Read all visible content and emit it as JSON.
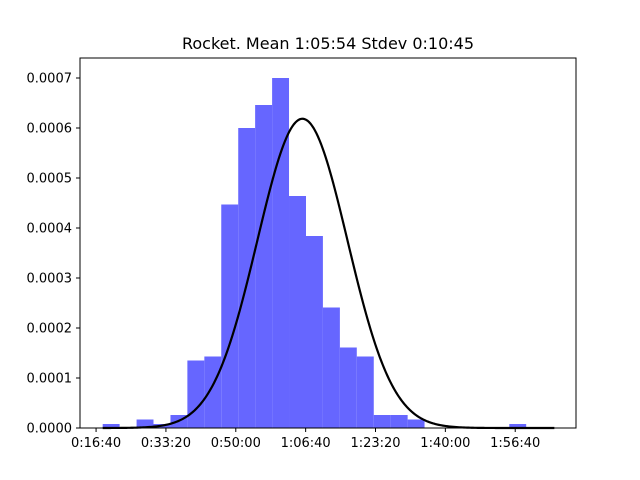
{
  "chart_data": {
    "type": "bar",
    "title": "Rocket. Mean 1:05:54 Stdev 0:10:45",
    "xlabel": "",
    "ylabel": "",
    "x_unit": "seconds",
    "xlim": [
      770,
      7870
    ],
    "ylim": [
      0,
      0.00074
    ],
    "bar_color": "#6666ff",
    "curve_color": "#000000",
    "x_ticks": [
      {
        "value": 1000,
        "label": "0:16:40"
      },
      {
        "value": 2000,
        "label": "0:33:20"
      },
      {
        "value": 3000,
        "label": "0:50:00"
      },
      {
        "value": 4000,
        "label": "1:06:40"
      },
      {
        "value": 5000,
        "label": "1:23:20"
      },
      {
        "value": 6000,
        "label": "1:40:00"
      },
      {
        "value": 7000,
        "label": "1:56:40"
      }
    ],
    "y_ticks": [
      {
        "value": 0,
        "label": "0.0000"
      },
      {
        "value": 0.0001,
        "label": "0.0001"
      },
      {
        "value": 0.0002,
        "label": "0.0002"
      },
      {
        "value": 0.0003,
        "label": "0.0003"
      },
      {
        "value": 0.0004,
        "label": "0.0004"
      },
      {
        "value": 0.0005,
        "label": "0.0005"
      },
      {
        "value": 0.0006,
        "label": "0.0006"
      },
      {
        "value": 0.0007,
        "label": "0.0007"
      }
    ],
    "bins": [
      {
        "start": 1095,
        "end": 1337,
        "value": 8e-06
      },
      {
        "start": 1580,
        "end": 1822,
        "value": 1.7e-05
      },
      {
        "start": 1822,
        "end": 2065,
        "value": 8e-06
      },
      {
        "start": 2065,
        "end": 2307,
        "value": 2.6e-05
      },
      {
        "start": 2307,
        "end": 2550,
        "value": 0.000135
      },
      {
        "start": 2550,
        "end": 2792,
        "value": 0.000143
      },
      {
        "start": 2792,
        "end": 3035,
        "value": 0.000447
      },
      {
        "start": 3035,
        "end": 3277,
        "value": 0.0006
      },
      {
        "start": 3277,
        "end": 3520,
        "value": 0.000646
      },
      {
        "start": 3520,
        "end": 3762,
        "value": 0.0007
      },
      {
        "start": 3762,
        "end": 4005,
        "value": 0.000464
      },
      {
        "start": 4005,
        "end": 4247,
        "value": 0.000384
      },
      {
        "start": 4247,
        "end": 4490,
        "value": 0.000241
      },
      {
        "start": 4490,
        "end": 4732,
        "value": 0.000161
      },
      {
        "start": 4732,
        "end": 4975,
        "value": 0.000143
      },
      {
        "start": 4975,
        "end": 5217,
        "value": 2.6e-05
      },
      {
        "start": 5217,
        "end": 5460,
        "value": 2.6e-05
      },
      {
        "start": 5460,
        "end": 5702,
        "value": 1.7e-05
      },
      {
        "start": 6915,
        "end": 7157,
        "value": 8e-06
      }
    ],
    "normal_curve": {
      "mean": 3954,
      "stdev": 645,
      "x_range": [
        1095,
        7560
      ]
    }
  }
}
